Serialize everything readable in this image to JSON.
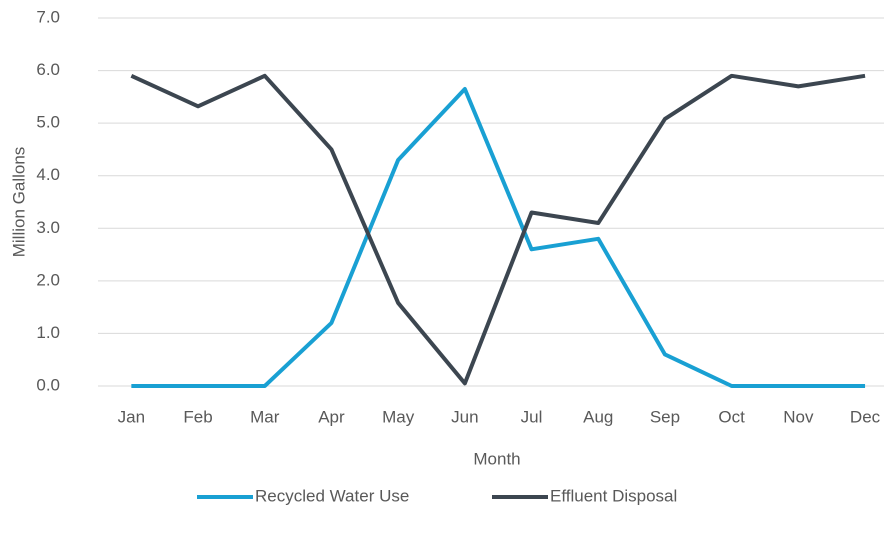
{
  "chart_data": {
    "type": "line",
    "x_label": "Month",
    "y_label": "Million Gallons",
    "categories": [
      "Jan",
      "Feb",
      "Mar",
      "Apr",
      "May",
      "Jun",
      "Jul",
      "Aug",
      "Sep",
      "Oct",
      "Nov",
      "Dec"
    ],
    "series": [
      {
        "name": "Recycled Water Use",
        "color": "#19a0d3",
        "values": [
          0,
          0,
          0,
          1.2,
          4.3,
          5.65,
          2.6,
          2.8,
          0.6,
          0,
          0,
          0
        ]
      },
      {
        "name": "Effluent Disposal",
        "color": "#3c4650",
        "values": [
          5.9,
          5.32,
          5.9,
          4.5,
          1.58,
          0.05,
          3.3,
          3.1,
          5.08,
          5.9,
          5.7,
          5.9
        ]
      }
    ],
    "ylim": [
      0,
      7
    ],
    "yticks": [
      {
        "value": 0,
        "label": "0.0"
      },
      {
        "value": 1,
        "label": "1.0"
      },
      {
        "value": 2,
        "label": "2.0"
      },
      {
        "value": 3,
        "label": "3.0"
      },
      {
        "value": 4,
        "label": "4.0"
      },
      {
        "value": 5,
        "label": "5.0"
      },
      {
        "value": 6,
        "label": "6.0"
      },
      {
        "value": 7,
        "label": "7.0"
      }
    ],
    "grid": true,
    "legend": "bottom"
  }
}
